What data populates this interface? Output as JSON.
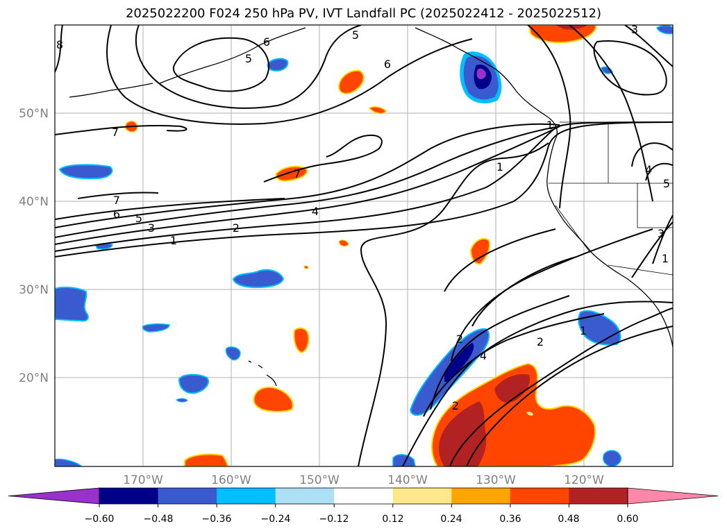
{
  "title": "2025022200 F024 250 hPa PV, IVT Landfall PC (2025022412 - 2025022512)",
  "chart_data": {
    "type": "contour-map",
    "title": "2025022200 F024 250 hPa PV, IVT Landfall PC (2025022412 - 2025022512)",
    "lon_range": [
      -180,
      -110
    ],
    "lat_range": [
      10,
      60
    ],
    "grid": true,
    "x_tick_labels": [
      "170°W",
      "160°W",
      "150°W",
      "140°W",
      "130°W",
      "120°W"
    ],
    "x_tick_values": [
      -170,
      -160,
      -150,
      -140,
      -130,
      -120
    ],
    "y_tick_labels": [
      "20°N",
      "30°N",
      "40°N",
      "50°N"
    ],
    "y_tick_values": [
      20,
      30,
      40,
      50
    ],
    "colorbar": {
      "orientation": "horizontal",
      "extend": "both",
      "tick_labels": [
        "−0.60",
        "−0.48",
        "−0.36",
        "−0.24",
        "−0.12",
        "0.12",
        "0.24",
        "0.36",
        "0.48",
        "0.60"
      ],
      "levels": [
        -0.6,
        -0.48,
        -0.36,
        -0.24,
        -0.12,
        0.12,
        0.24,
        0.36,
        0.48,
        0.6
      ],
      "colors": [
        "#9932CC",
        "#00008B",
        "#3A5BD0",
        "#00BFFF",
        "#ADDFF7",
        "#FFFFFF",
        "#FFE88A",
        "#FFA500",
        "#FF4500",
        "#B22222",
        "#FF88AA"
      ]
    },
    "contour_labels": [
      "8",
      "6",
      "5",
      "6",
      "5",
      "7",
      "7",
      "7",
      "6",
      "5",
      "3",
      "2",
      "1",
      "4",
      "1",
      "2",
      "4",
      "2",
      "2",
      "1",
      "3",
      "4",
      "5",
      "1",
      "3",
      "1"
    ]
  }
}
